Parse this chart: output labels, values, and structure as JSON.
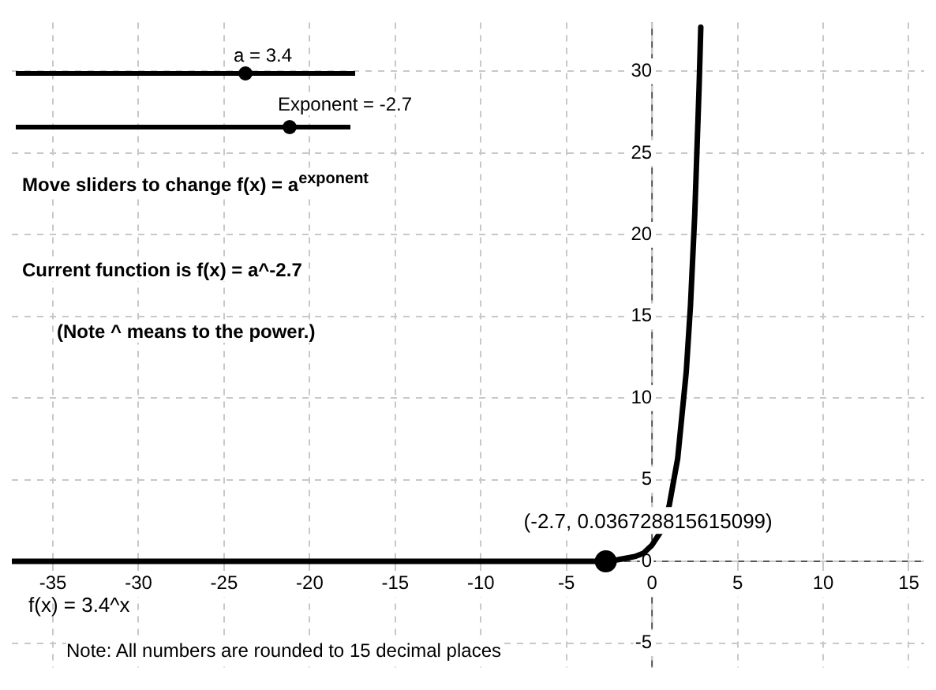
{
  "chart_data": {
    "type": "line",
    "xlim": [
      -37.4,
      15.9
    ],
    "ylim": [
      -6.5,
      33
    ],
    "xticks": [
      -35,
      -30,
      -25,
      -20,
      -15,
      -10,
      -5,
      0,
      5,
      10,
      15
    ],
    "yticks": [
      -5,
      0,
      5,
      10,
      15,
      20,
      25,
      30
    ],
    "grid": true,
    "legend": false,
    "series": [
      {
        "name": "f(x) = 3.4^x",
        "color": "#000000",
        "x": [
          -37.4,
          -10,
          -5,
          -4,
          -3,
          -2,
          -1.5,
          -1,
          -0.5,
          0,
          0.5,
          1,
          1.5,
          2,
          2.25,
          2.5,
          2.75,
          2.85
        ],
        "values": [
          0,
          0,
          0,
          0,
          0,
          0.1,
          0.2,
          0.3,
          0.5,
          1,
          1.8,
          3.4,
          6.3,
          11.6,
          15.7,
          21.3,
          29,
          32.7
        ]
      },
      {
        "type": "scatter",
        "color": "#000000",
        "x": [
          -2.7
        ],
        "values": [
          0
        ],
        "marker": "circle"
      }
    ],
    "annotations": [
      "a = 3.4",
      "Exponent = -2.7",
      "Move sliders to change f(x) = a$^{exponent}$",
      "Current function is  f(x) =  a^-2.7",
      "(Note ^ means to the power.)",
      "Note: All numbers are rounded to 15 decimal places",
      {
        "text": "(-2.7, 0.036728815615099)",
        "x": -2.7,
        "y": 0.036728815615099
      }
    ]
  }
}
